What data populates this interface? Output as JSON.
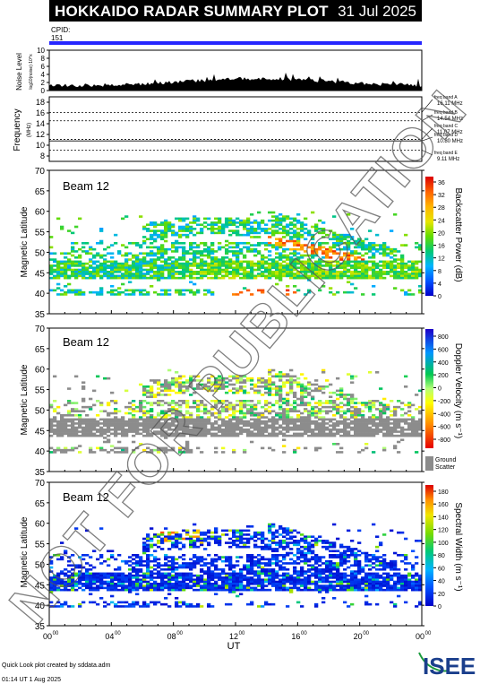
{
  "header": {
    "title": "HOKKAIDO RADAR SUMMARY PLOT",
    "date": "31 Jul 2025"
  },
  "cpid": {
    "label": "CPID:",
    "value": "151"
  },
  "noise_panel": {
    "ylabel": "Noise Level",
    "ylabel_unit": "log10(noise) 10^x",
    "ticks": [
      "10",
      "8",
      "6",
      "4",
      "2",
      "0"
    ]
  },
  "freq_panel": {
    "ylabel": "Frequency",
    "ylabel_unit": "(MHz)",
    "ticks": [
      "18",
      "16",
      "14",
      "12",
      "10",
      "8"
    ],
    "bands": [
      {
        "label": "freq band A",
        "value": "16.11 MHz"
      },
      {
        "label": "freq band B",
        "value": "14.54 MHz"
      },
      {
        "label": "freq band C",
        "value": "11.07 MHz"
      },
      {
        "label": "freq band D",
        "value": "10.80 MHz"
      },
      {
        "label": "freq band E",
        "value": "9.11 MHz"
      }
    ]
  },
  "beam_label": "Beam 12",
  "lat_label": "Magnetic Latitude",
  "lat_ticks": [
    "70",
    "65",
    "60",
    "55",
    "50",
    "45",
    "40",
    "35"
  ],
  "power_scale": {
    "title": "Backscatter Power (dB)",
    "ticks": [
      "36",
      "32",
      "28",
      "24",
      "20",
      "16",
      "12",
      "8",
      "4",
      "0"
    ]
  },
  "velocity_scale": {
    "title": "Doppler Velocity (m s⁻¹)",
    "ticks": [
      "800",
      "600",
      "400",
      "200",
      "0",
      "-200",
      "-400",
      "-600",
      "-800"
    ],
    "ground_label_1": "Ground",
    "ground_label_2": "Scatter"
  },
  "width_scale": {
    "title": "Spectral Width (m s⁻¹)",
    "ticks": [
      "180",
      "160",
      "140",
      "120",
      "100",
      "80",
      "60",
      "40",
      "20",
      "0"
    ]
  },
  "x_ticks": [
    {
      "h": "00",
      "m": "00"
    },
    {
      "h": "04",
      "m": "00"
    },
    {
      "h": "08",
      "m": "00"
    },
    {
      "h": "12",
      "m": "00"
    },
    {
      "h": "16",
      "m": "00"
    },
    {
      "h": "20",
      "m": "00"
    },
    {
      "h": "00",
      "m": "00"
    }
  ],
  "xlabel": "UT",
  "footer": {
    "line1": "Quick Look plot created by sddata.adm",
    "line2": "01:14 UT  1 Aug 2025"
  },
  "watermark": "NOT FOR PUBLICATION",
  "logo": "ISEE",
  "colors": {
    "bar": "#2626ff",
    "ground_scatter": "#8c8c8c"
  },
  "chart_data": {
    "type": "heatmap",
    "x_range_hours": [
      0,
      24
    ],
    "lat_range": [
      35,
      70
    ],
    "noise_ylim": [
      0,
      10
    ],
    "freq_ylim": [
      7,
      19
    ],
    "freq_bands_mhz": [
      16.11,
      14.54,
      11.07,
      10.8,
      9.11
    ],
    "power_range_db": [
      0,
      36
    ],
    "velocity_range": [
      -800,
      800
    ],
    "width_range": [
      0,
      180
    ]
  }
}
